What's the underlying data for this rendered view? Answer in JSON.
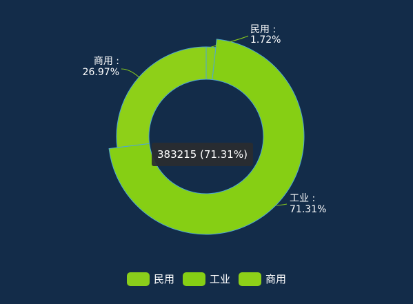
{
  "chart_data": {
    "type": "pie",
    "subtype": "donut",
    "title": "",
    "slices": [
      {
        "name": "民用",
        "percent": 1.72,
        "color": "#8ace1b"
      },
      {
        "name": "工业",
        "percent": 71.31,
        "color": "#86cf14",
        "value": 383215
      },
      {
        "name": "商用",
        "percent": 26.97,
        "color": "#8ed018"
      }
    ],
    "labels": [
      {
        "name": "民用 :",
        "value": "1.72%"
      },
      {
        "name": "工业 :",
        "value": "71.31%"
      },
      {
        "name": "商用 :",
        "value": "26.97%"
      }
    ],
    "highlighted": "工业",
    "legend": {
      "position": "bottom",
      "items": [
        {
          "label": "民用",
          "color": "#8ace1b"
        },
        {
          "label": "工业",
          "color": "#86cf14"
        },
        {
          "label": "商用",
          "color": "#8ed018"
        }
      ]
    }
  },
  "tooltip": {
    "text": "383215 (71.31%)"
  },
  "colors": {
    "background": "#132c49",
    "slice_border": "#4fa7d4",
    "leader_line": "#8ace1b"
  }
}
